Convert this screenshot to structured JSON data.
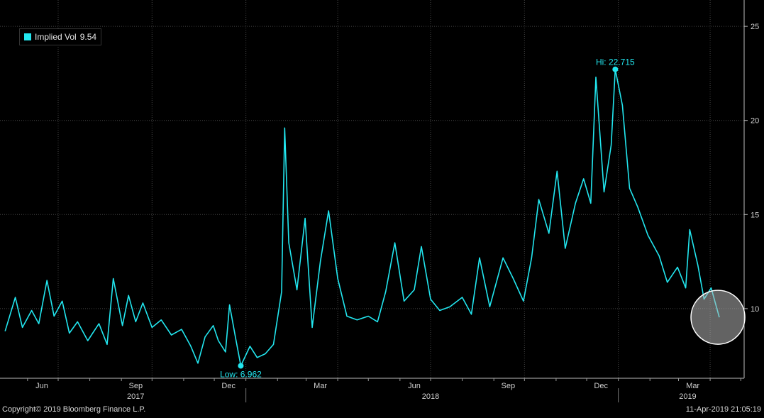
{
  "chart_data": {
    "type": "line",
    "title": "",
    "xlabel": "",
    "ylabel": "",
    "ylim": [
      6.3,
      26.4
    ],
    "y_ticks": [
      10,
      15,
      20,
      25
    ],
    "x_month_ticks": [
      "Jun",
      "Sep",
      "Dec",
      "Mar",
      "Jun",
      "Sep",
      "Dec",
      "Mar"
    ],
    "x_year_labels": [
      "2017",
      "2018",
      "2019"
    ],
    "grid": "on",
    "legend_placement": "top-left",
    "series": [
      {
        "name": "Implied Vol",
        "legend_value": "9.54",
        "color": "#22e6ef",
        "points": [
          [
            "2017-05-10",
            8.8
          ],
          [
            "2017-05-20",
            10.6
          ],
          [
            "2017-05-27",
            9.0
          ],
          [
            "2017-06-05",
            9.9
          ],
          [
            "2017-06-12",
            9.2
          ],
          [
            "2017-06-20",
            11.5
          ],
          [
            "2017-06-27",
            9.6
          ],
          [
            "2017-07-05",
            10.4
          ],
          [
            "2017-07-12",
            8.7
          ],
          [
            "2017-07-20",
            9.3
          ],
          [
            "2017-07-30",
            8.3
          ],
          [
            "2017-08-10",
            9.2
          ],
          [
            "2017-08-18",
            8.1
          ],
          [
            "2017-08-24",
            11.6
          ],
          [
            "2017-09-02",
            9.1
          ],
          [
            "2017-09-08",
            10.7
          ],
          [
            "2017-09-15",
            9.3
          ],
          [
            "2017-09-22",
            10.3
          ],
          [
            "2017-10-01",
            9.0
          ],
          [
            "2017-10-10",
            9.4
          ],
          [
            "2017-10-20",
            8.6
          ],
          [
            "2017-10-30",
            8.9
          ],
          [
            "2017-11-08",
            8.0
          ],
          [
            "2017-11-15",
            7.1
          ],
          [
            "2017-11-22",
            8.5
          ],
          [
            "2017-11-30",
            9.1
          ],
          [
            "2017-12-05",
            8.3
          ],
          [
            "2017-12-12",
            7.7
          ],
          [
            "2017-12-16",
            10.2
          ],
          [
            "2017-12-22",
            8.4
          ],
          [
            "2017-12-27",
            6.962
          ],
          [
            "2018-01-05",
            8.0
          ],
          [
            "2018-01-12",
            7.4
          ],
          [
            "2018-01-20",
            7.6
          ],
          [
            "2018-01-28",
            8.1
          ],
          [
            "2018-02-05",
            10.9
          ],
          [
            "2018-02-08",
            19.6
          ],
          [
            "2018-02-12",
            13.5
          ],
          [
            "2018-02-20",
            11.0
          ],
          [
            "2018-02-28",
            14.8
          ],
          [
            "2018-03-07",
            9.0
          ],
          [
            "2018-03-15",
            12.5
          ],
          [
            "2018-03-23",
            15.2
          ],
          [
            "2018-04-01",
            11.6
          ],
          [
            "2018-04-10",
            9.6
          ],
          [
            "2018-04-20",
            9.4
          ],
          [
            "2018-05-01",
            9.6
          ],
          [
            "2018-05-10",
            9.3
          ],
          [
            "2018-05-18",
            10.9
          ],
          [
            "2018-05-27",
            13.5
          ],
          [
            "2018-06-05",
            10.4
          ],
          [
            "2018-06-15",
            11.0
          ],
          [
            "2018-06-22",
            13.3
          ],
          [
            "2018-07-01",
            10.5
          ],
          [
            "2018-07-10",
            9.9
          ],
          [
            "2018-07-20",
            10.1
          ],
          [
            "2018-08-01",
            10.6
          ],
          [
            "2018-08-10",
            9.7
          ],
          [
            "2018-08-18",
            12.7
          ],
          [
            "2018-08-28",
            10.1
          ],
          [
            "2018-09-10",
            12.7
          ],
          [
            "2018-09-20",
            11.6
          ],
          [
            "2018-09-30",
            10.4
          ],
          [
            "2018-10-08",
            12.7
          ],
          [
            "2018-10-15",
            15.8
          ],
          [
            "2018-10-25",
            14.0
          ],
          [
            "2018-11-02",
            17.3
          ],
          [
            "2018-11-10",
            13.2
          ],
          [
            "2018-11-20",
            15.6
          ],
          [
            "2018-11-28",
            16.9
          ],
          [
            "2018-12-05",
            15.6
          ],
          [
            "2018-12-10",
            22.3
          ],
          [
            "2018-12-18",
            16.2
          ],
          [
            "2018-12-25",
            18.7
          ],
          [
            "2018-12-29",
            22.715
          ],
          [
            "2019-01-05",
            20.8
          ],
          [
            "2019-01-12",
            16.4
          ],
          [
            "2019-01-20",
            15.4
          ],
          [
            "2019-01-30",
            13.9
          ],
          [
            "2019-02-10",
            12.8
          ],
          [
            "2019-02-18",
            11.4
          ],
          [
            "2019-02-28",
            12.2
          ],
          [
            "2019-03-08",
            11.1
          ],
          [
            "2019-03-12",
            14.2
          ],
          [
            "2019-03-20",
            12.3
          ],
          [
            "2019-03-26",
            10.5
          ],
          [
            "2019-04-02",
            11.1
          ],
          [
            "2019-04-10",
            9.54
          ]
        ]
      }
    ],
    "annotations": [
      {
        "label": "Hi: 22.715",
        "date": "2018-12-29",
        "value": 22.715
      },
      {
        "label": "Low: 6.962",
        "date": "2017-12-27",
        "value": 6.962
      }
    ]
  },
  "legend": {
    "series_name": "Implied Vol",
    "value": "9.54"
  },
  "footer": {
    "copyright": "Copyright© 2019 Bloomberg Finance L.P.",
    "timestamp": "11-Apr-2019 21:05:19"
  }
}
